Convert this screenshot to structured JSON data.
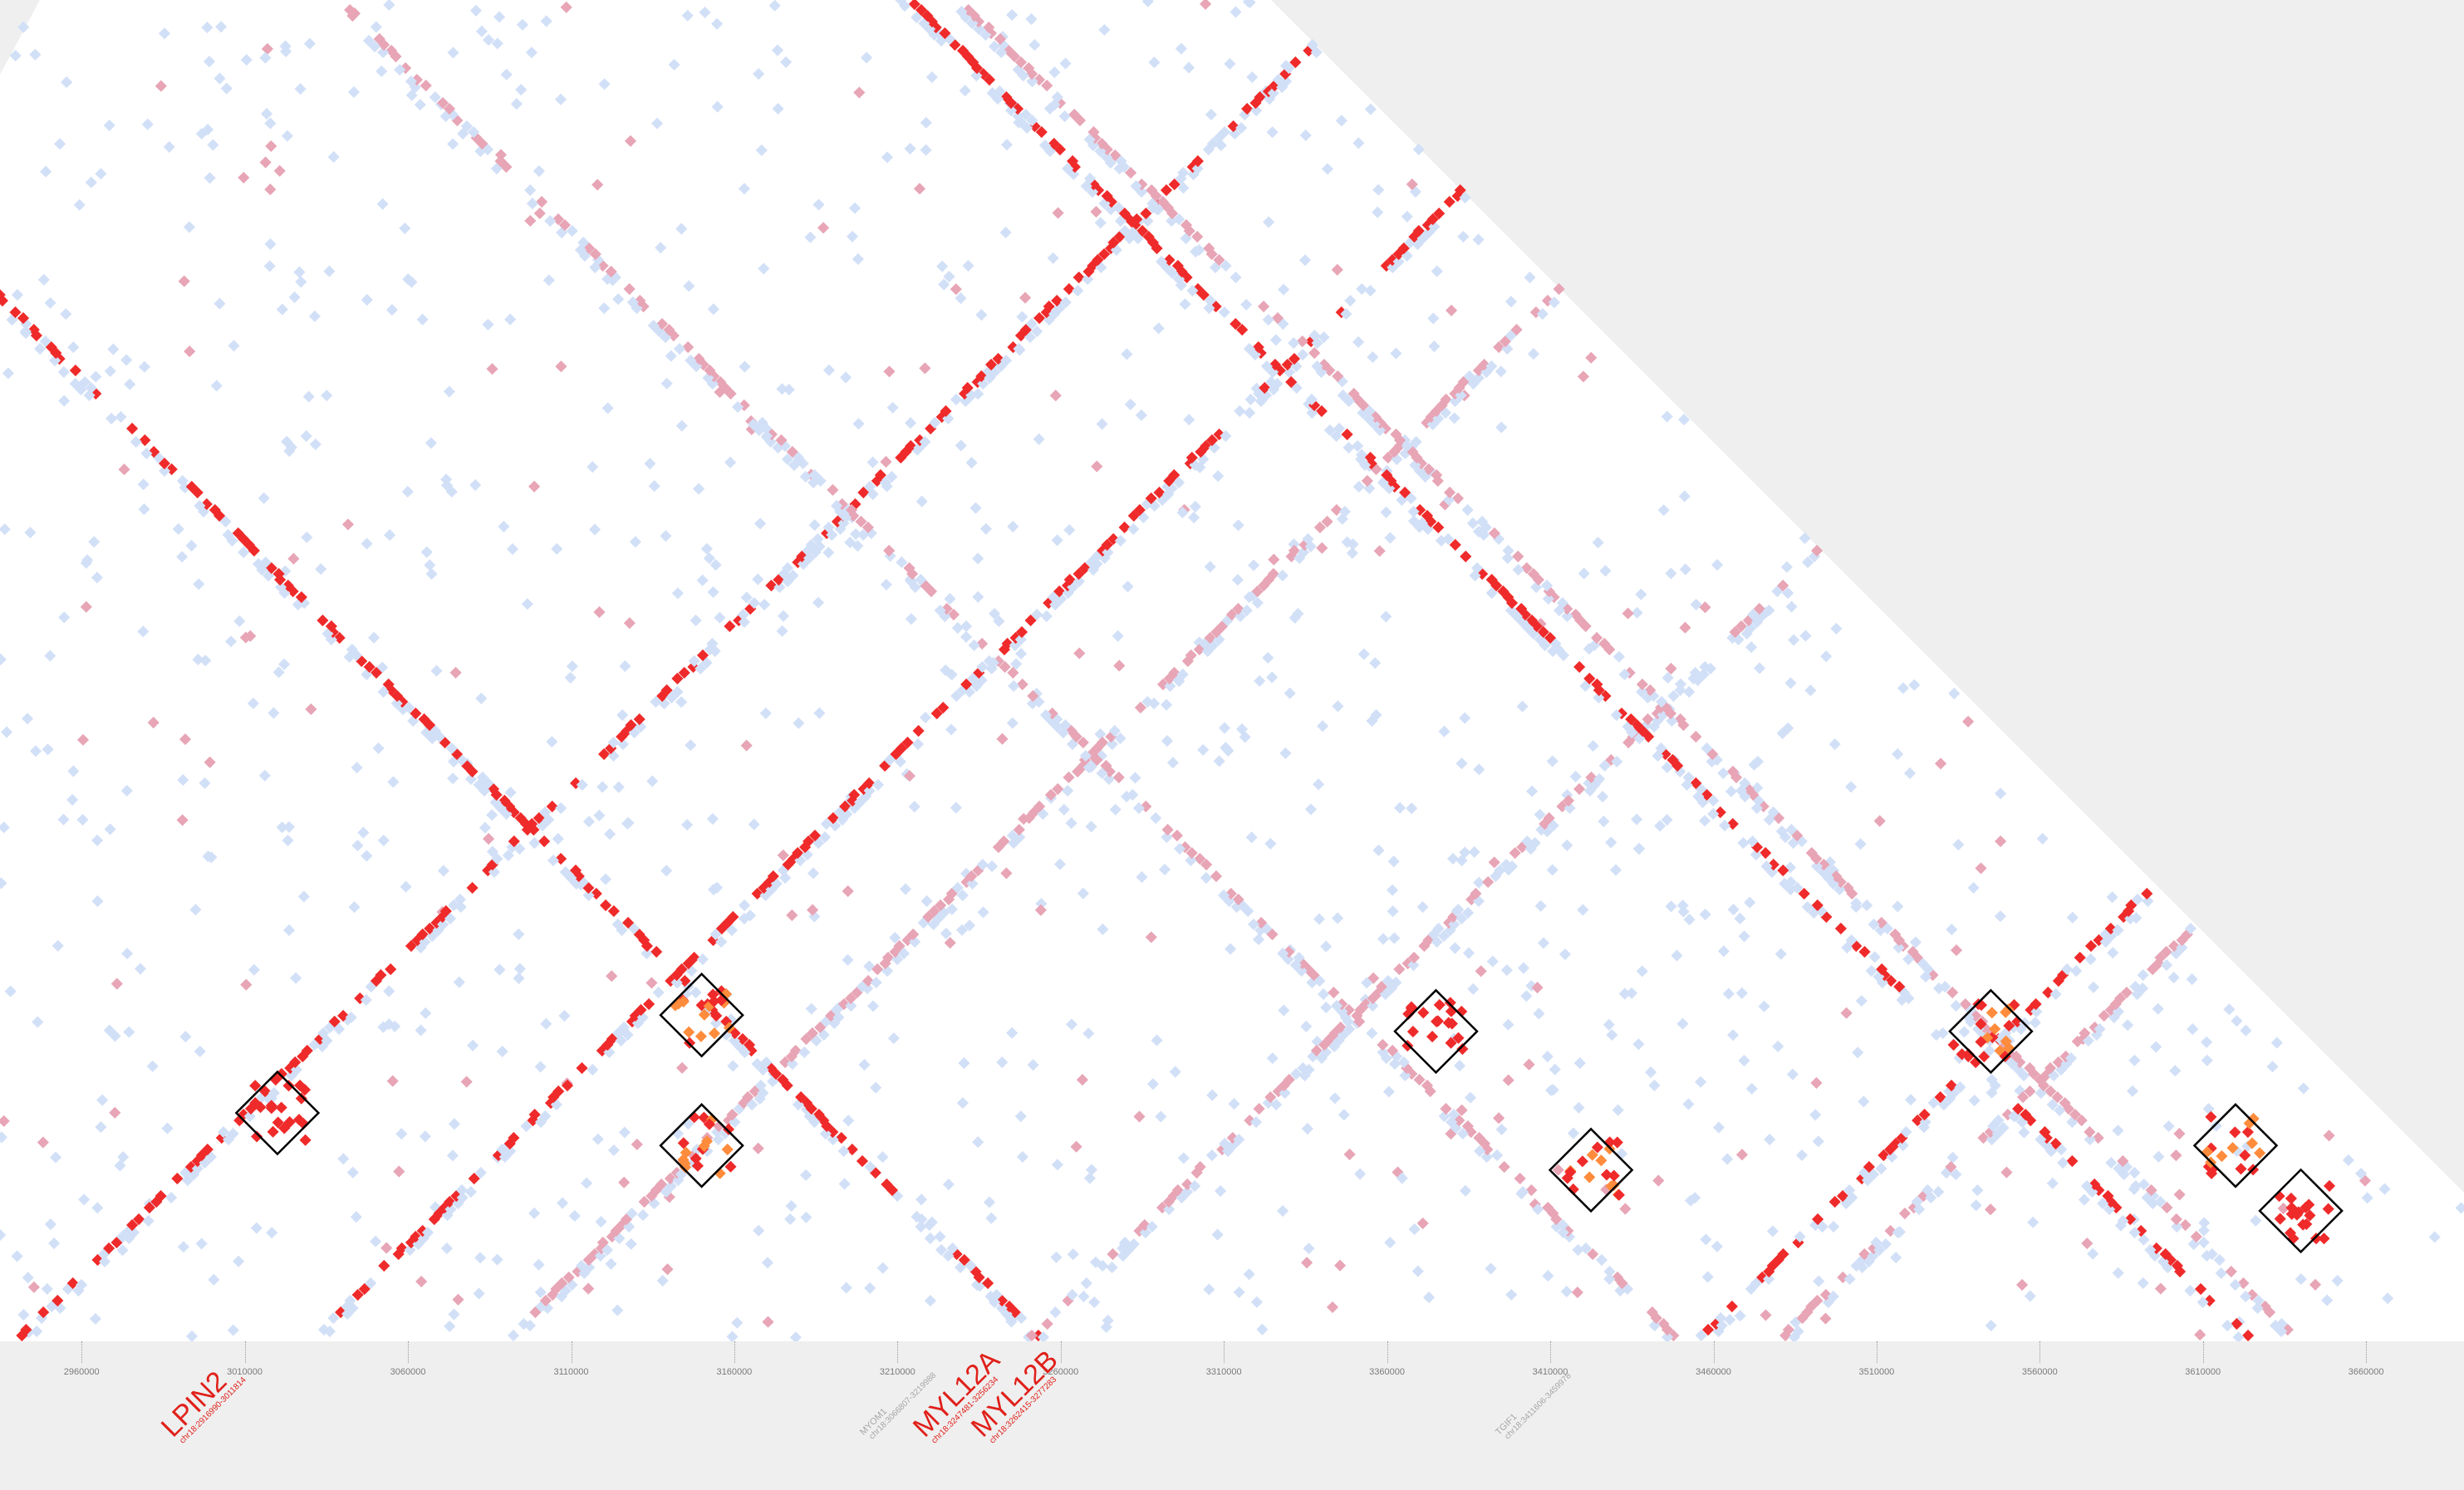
{
  "colors": {
    "background": "#efefef",
    "triangle": "#ffffff",
    "low": "#d2e0f7",
    "mid": "#e7a5b6",
    "high": "#ef2a2a",
    "peak": "#ff8c3c",
    "box_outline": "#000000",
    "gene_highlight": "#e0201a",
    "gene_muted": "#a6a6a6"
  },
  "axis": {
    "ticks": [
      "2960000",
      "3010000",
      "3060000",
      "3110000",
      "3160000",
      "3210000",
      "3260000",
      "3310000",
      "3360000",
      "3410000",
      "3460000",
      "3510000",
      "3560000",
      "3610000",
      "3660000"
    ]
  },
  "genes": [
    {
      "name": "LPIN2",
      "locus": "chr18:2916990-3011814",
      "highlight": true
    },
    {
      "name": "MYOM1",
      "locus": "chr18:3066807-3219988",
      "highlight": false
    },
    {
      "name": "MYL12A",
      "locus": "chr18:3247481-3256234",
      "highlight": true
    },
    {
      "name": "MYL12B",
      "locus": "chr18:3262415-3277283",
      "highlight": true
    },
    {
      "name": "TGIF1",
      "locus": "chr18:3411606-3459978",
      "highlight": false
    }
  ],
  "chart_data": {
    "type": "heatmap",
    "title": "",
    "xlabel": "",
    "ylabel": "",
    "x_range": [
      2935000,
      3690000
    ],
    "scale": [
      "low",
      "mid",
      "high",
      "peak"
    ],
    "interaction_diagonals": [
      {
        "anchor_bp": 2940000,
        "direction": "right",
        "level": "high"
      },
      {
        "anchor_bp": 3030000,
        "direction": "right",
        "level": "high"
      },
      {
        "anchor_bp": 3090000,
        "direction": "right",
        "level": "mid"
      },
      {
        "anchor_bp": 3255000,
        "direction": "left",
        "level": "high"
      },
      {
        "anchor_bp": 3250000,
        "direction": "right",
        "level": "mid"
      },
      {
        "anchor_bp": 3450000,
        "direction": "left",
        "level": "mid"
      },
      {
        "anchor_bp": 3455000,
        "direction": "right",
        "level": "high"
      },
      {
        "anchor_bp": 3480000,
        "direction": "right",
        "level": "mid"
      },
      {
        "anchor_bp": 3625000,
        "direction": "left",
        "level": "high"
      },
      {
        "anchor_bp": 3640000,
        "direction": "left",
        "level": "mid"
      }
    ],
    "highlighted_contacts": [
      {
        "bp1": 2950000,
        "bp2": 3090000,
        "level": "high"
      },
      {
        "bp1": 3090000,
        "bp2": 3210000,
        "level": "peak"
      },
      {
        "bp1": 3050000,
        "bp2": 3250000,
        "level": "peak"
      },
      {
        "bp1": 3280000,
        "bp2": 3470000,
        "level": "high"
      },
      {
        "bp1": 3370000,
        "bp2": 3475000,
        "level": "peak"
      },
      {
        "bp1": 3450000,
        "bp2": 3640000,
        "level": "peak"
      },
      {
        "bp1": 3560000,
        "bp2": 3680000,
        "level": "peak"
      },
      {
        "bp1": 3600000,
        "bp2": 3680000,
        "level": "high"
      }
    ]
  }
}
